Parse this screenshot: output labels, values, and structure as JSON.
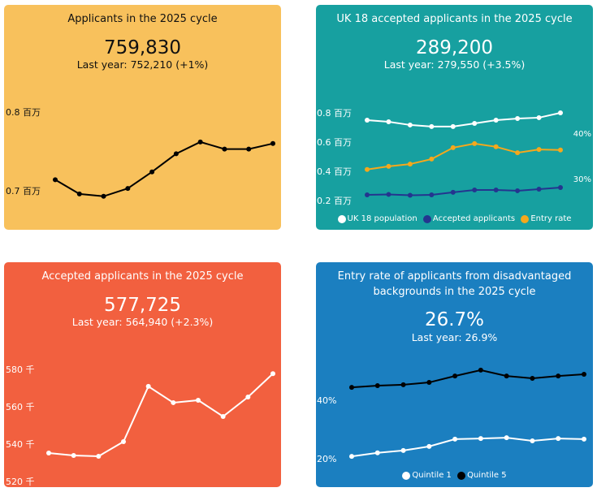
{
  "panels": [
    {
      "title": "Applicants in the 2025 cycle",
      "value": "759,830",
      "last_year": "Last year: 752,210 (+1%)"
    },
    {
      "title": "UK 18 accepted applicants in the 2025 cycle",
      "value": "289,200",
      "last_year": "Last year: 279,550 (+3.5%)"
    },
    {
      "title": "Accepted applicants in the 2025 cycle",
      "value": "577,725",
      "last_year": "Last year: 564,940 (+2.3%)"
    },
    {
      "title": "Entry rate of applicants from disadvantaged backgrounds in the 2025 cycle",
      "value": "26.7%",
      "last_year": "Last year: 26.9%"
    }
  ],
  "chart_data": [
    {
      "type": "line",
      "yticks": [
        "0.7 百万",
        "0.8 百万"
      ],
      "ytick_values": [
        0.7,
        0.8
      ],
      "series": [
        {
          "name": "Applicants",
          "color": "#000000",
          "axis": "left",
          "values": [
            0.714,
            0.696,
            0.693,
            0.703,
            0.724,
            0.747,
            0.762,
            0.753,
            0.753,
            0.76
          ]
        }
      ]
    },
    {
      "type": "line",
      "yticks": [
        "0.2 百万",
        "0.4 百万",
        "0.6 百万",
        "0.8 百万"
      ],
      "ytick_values": [
        0.2,
        0.4,
        0.6,
        0.8
      ],
      "y2ticks": [
        "30%",
        "40%"
      ],
      "y2tick_values": [
        30,
        40
      ],
      "series": [
        {
          "name": "UK 18 population",
          "color": "#FFFFFF",
          "axis": "left",
          "values": [
            0.75,
            0.739,
            0.717,
            0.706,
            0.706,
            0.728,
            0.75,
            0.761,
            0.767,
            0.8
          ]
        },
        {
          "name": "Accepted applicants",
          "color": "#24358F",
          "axis": "left",
          "values": [
            0.239,
            0.242,
            0.236,
            0.239,
            0.256,
            0.272,
            0.272,
            0.267,
            0.278,
            0.289
          ]
        },
        {
          "name": "Entry rate",
          "color": "#F5A81C",
          "axis": "right",
          "values": [
            32.0,
            32.7,
            33.2,
            34.3,
            36.8,
            37.7,
            37.0,
            35.7,
            36.4,
            36.3
          ]
        }
      ]
    },
    {
      "type": "line",
      "yticks": [
        "520 千",
        "540 千",
        "560 千",
        "580 千"
      ],
      "ytick_values": [
        520,
        540,
        560,
        580
      ],
      "series": [
        {
          "name": "Accepted applicants",
          "color": "#FFFFFF",
          "axis": "left",
          "values": [
            535.2,
            533.9,
            533.5,
            541.3,
            570.9,
            562.2,
            563.5,
            554.8,
            565.2,
            577.7
          ]
        }
      ]
    },
    {
      "type": "line",
      "yticks": [
        "20%",
        "40%"
      ],
      "ytick_values": [
        20,
        40
      ],
      "series": [
        {
          "name": "Quintile 1",
          "color": "#FFFFFF",
          "axis": "left",
          "values": [
            20.8,
            22.0,
            22.8,
            24.2,
            26.7,
            26.9,
            27.2,
            26.1,
            26.9,
            26.7
          ]
        },
        {
          "name": "Quintile 5",
          "color": "#000000",
          "axis": "left",
          "values": [
            44.4,
            45.0,
            45.3,
            46.1,
            48.3,
            50.3,
            48.3,
            47.5,
            48.3,
            48.9
          ]
        }
      ]
    }
  ]
}
